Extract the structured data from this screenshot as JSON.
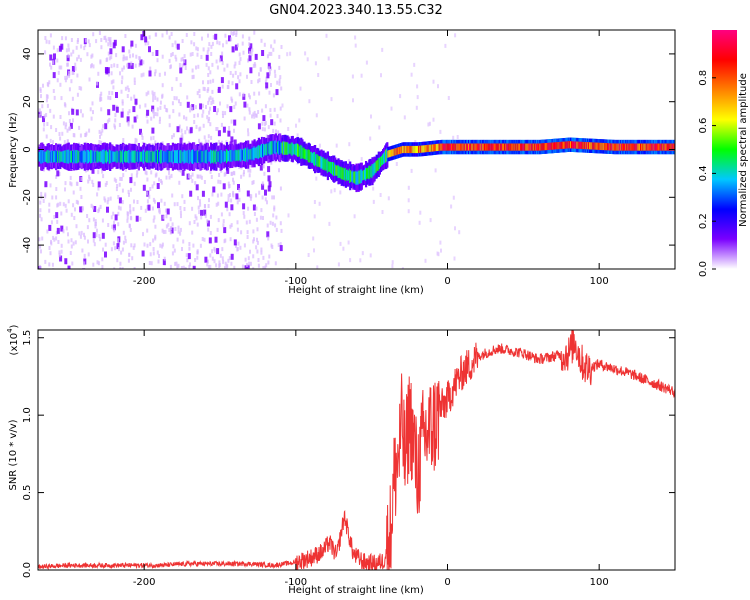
{
  "figure": {
    "title": "GN04.2023.340.13.55.C32"
  },
  "chart_data": [
    {
      "type": "heatmap",
      "name": "spectrogram",
      "xlabel": "Height of straight line (km)",
      "ylabel": "Frequency (Hz)",
      "xlim": [
        -270,
        150
      ],
      "ylim": [
        -50,
        50
      ],
      "x_ticks": [
        -200,
        -100,
        0,
        100
      ],
      "x_tick_labels": [
        "-200",
        "-100",
        "0",
        "100"
      ],
      "y_ticks": [
        -40,
        -20,
        0,
        20,
        40
      ],
      "y_tick_labels": [
        "-40",
        "-20",
        "0",
        "20",
        "40"
      ],
      "grid": false,
      "colorbar": {
        "label": "Normalized spectral amplitude",
        "range": [
          0,
          1
        ],
        "ticks": [
          0.0,
          0.2,
          0.4,
          0.6,
          0.8
        ],
        "tick_labels": [
          "0.0",
          "0.2",
          "0.4",
          "0.6",
          "0.8"
        ],
        "colors": [
          "#ffffff",
          "#7a00ff",
          "#0000ff",
          "#00c8ff",
          "#00ff00",
          "#ffff00",
          "#ff8000",
          "#ff0000",
          "#ff0080"
        ]
      },
      "signal_track": [
        {
          "x": -270,
          "freq": -3
        },
        {
          "x": -240,
          "freq": -3
        },
        {
          "x": -210,
          "freq": -3
        },
        {
          "x": -180,
          "freq": -3
        },
        {
          "x": -150,
          "freq": -3
        },
        {
          "x": -130,
          "freq": -2
        },
        {
          "x": -115,
          "freq": 1
        },
        {
          "x": -100,
          "freq": 0
        },
        {
          "x": -85,
          "freq": -5
        },
        {
          "x": -70,
          "freq": -10
        },
        {
          "x": -60,
          "freq": -12
        },
        {
          "x": -50,
          "freq": -9
        },
        {
          "x": -40,
          "freq": -2
        },
        {
          "x": -30,
          "freq": 0
        },
        {
          "x": -20,
          "freq": 0
        },
        {
          "x": -5,
          "freq": 1
        },
        {
          "x": 20,
          "freq": 1
        },
        {
          "x": 60,
          "freq": 1
        },
        {
          "x": 80,
          "freq": 2
        },
        {
          "x": 110,
          "freq": 1
        },
        {
          "x": 150,
          "freq": 1
        }
      ]
    },
    {
      "type": "line",
      "name": "snr",
      "xlabel": "Height of straight line (km)",
      "ylabel": "SNR (10 * v/v)",
      "multiplier_label": "(x10",
      "multiplier_exponent": "4",
      "xlim": [
        -270,
        150
      ],
      "ylim": [
        0,
        1.55
      ],
      "x_ticks": [
        -200,
        -100,
        0,
        100
      ],
      "x_tick_labels": [
        "-200",
        "-100",
        "0",
        "100"
      ],
      "y_ticks": [
        0.0,
        0.5,
        1.0,
        1.5
      ],
      "y_tick_labels": [
        "0.0",
        "0.5",
        "1.0",
        "1.5"
      ],
      "grid": false,
      "color": "#ee3333",
      "series": [
        {
          "x": [
            -270,
            -250,
            -230,
            -210,
            -190,
            -170,
            -150,
            -130,
            -115,
            -100,
            -90,
            -82,
            -78,
            -73,
            -68,
            -62,
            -55,
            -48,
            -42,
            -38,
            -35,
            -32,
            -30,
            -28,
            -25,
            -22,
            -20,
            -16,
            -12,
            -8,
            -4,
            0,
            5,
            10,
            15,
            20,
            25,
            30,
            35,
            40,
            50,
            60,
            70,
            80,
            84,
            88,
            92,
            100,
            110,
            120,
            130,
            140,
            150
          ],
          "y": [
            0.02,
            0.03,
            0.03,
            0.03,
            0.03,
            0.04,
            0.04,
            0.04,
            0.03,
            0.05,
            0.08,
            0.12,
            0.18,
            0.09,
            0.35,
            0.1,
            0.05,
            0.04,
            0.06,
            0.2,
            0.6,
            0.75,
            0.95,
            0.7,
            1.0,
            0.8,
            0.6,
            0.85,
            0.9,
            0.95,
            1.05,
            1.1,
            1.2,
            1.28,
            1.33,
            1.38,
            1.4,
            1.42,
            1.43,
            1.42,
            1.4,
            1.36,
            1.38,
            1.4,
            1.48,
            1.35,
            1.3,
            1.33,
            1.3,
            1.27,
            1.23,
            1.19,
            1.15
          ]
        }
      ]
    }
  ]
}
